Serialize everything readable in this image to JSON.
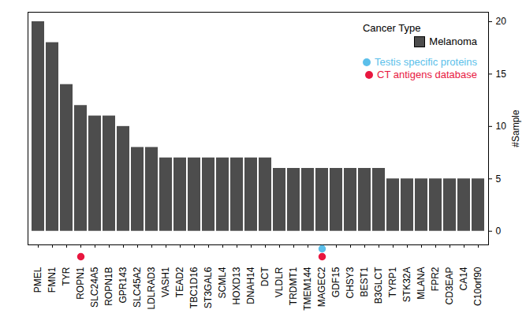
{
  "chart_data": {
    "type": "bar",
    "categories": [
      "PMEL",
      "FMN1",
      "TYR",
      "ROPN1",
      "SLC24A5",
      "ROPN1B",
      "GPR143",
      "SLC45A2",
      "LDLRAD3",
      "VASH1",
      "TEAD2",
      "TBC1D16",
      "ST3GAL6",
      "SCML4",
      "HOXD13",
      "DNAH14",
      "DCT",
      "VLDLR",
      "TRDMT1",
      "TMEM144",
      "MAGEC2",
      "GDF15",
      "CHSY3",
      "BEST1",
      "B3GLCT",
      "TYRP1",
      "STK32A",
      "MLANA",
      "FPR2",
      "CD3EAP",
      "CA14",
      "C10orf90"
    ],
    "series": [
      {
        "name": "Melanoma",
        "color": "#4d4d4d",
        "values": [
          20,
          18,
          14,
          12,
          11,
          11,
          10,
          8,
          8,
          7,
          7,
          7,
          7,
          7,
          7,
          7,
          7,
          6,
          6,
          6,
          6,
          6,
          6,
          6,
          6,
          5,
          5,
          5,
          5,
          5,
          5,
          5
        ]
      }
    ],
    "legend_title": "Cancer Type",
    "markers": [
      {
        "name": "Testis specific proteins",
        "color": "#5bbfea",
        "categories": [
          "MAGEC2"
        ]
      },
      {
        "name": "CT antigens database",
        "color": "#e8173f",
        "categories": [
          "ROPN1",
          "MAGEC2"
        ]
      }
    ],
    "y_label": "#Sample",
    "ylim": [
      -1.3,
      20.9
    ],
    "yticks": [
      0,
      5,
      10,
      15,
      20
    ],
    "legend": "top-right"
  }
}
